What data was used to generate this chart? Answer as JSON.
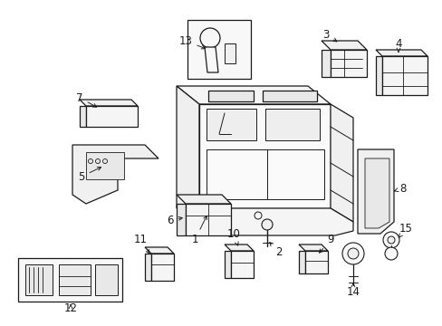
{
  "bg_color": "#ffffff",
  "line_color": "#1a1a1a",
  "parts_labels": [
    1,
    2,
    3,
    4,
    5,
    6,
    7,
    8,
    9,
    10,
    11,
    12,
    13,
    14,
    15
  ],
  "font_size": 8.5
}
